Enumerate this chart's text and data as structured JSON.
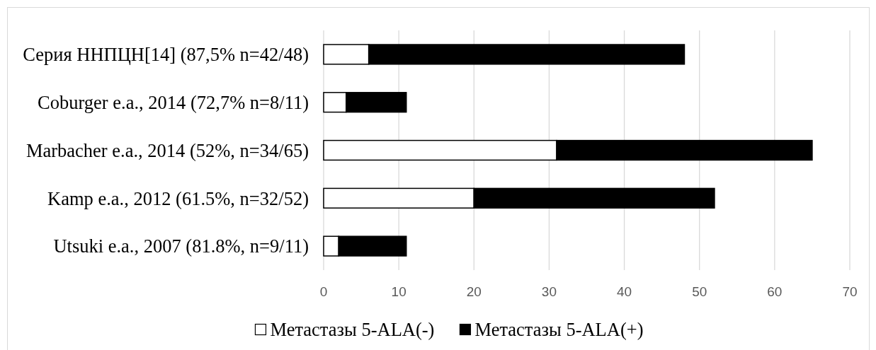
{
  "chart_data": {
    "type": "bar",
    "orientation": "horizontal",
    "stacked": true,
    "categories": [
      "Серия ННПЦН[14] (87,5% n=42/48)",
      "Coburger e.a., 2014 (72,7% n=8/11)",
      "Marbacher e.a., 2014 (52%, n=34/65)",
      "Kamp e.a., 2012 (61.5%, n=32/52)",
      "Utsuki e.a., 2007 (81.8%, n=9/11)"
    ],
    "series": [
      {
        "name": "Метастазы 5-ALA(-)",
        "color": "#ffffff",
        "values": [
          6,
          3,
          31,
          20,
          2
        ]
      },
      {
        "name": "Метастазы 5-ALA(+)",
        "color": "#000000",
        "values": [
          42,
          8,
          34,
          32,
          9
        ]
      }
    ],
    "xlim": [
      0,
      70
    ],
    "xticks": [
      0,
      10,
      20,
      30,
      40,
      50,
      60,
      70
    ],
    "grid": "x",
    "legend": "bottom"
  }
}
